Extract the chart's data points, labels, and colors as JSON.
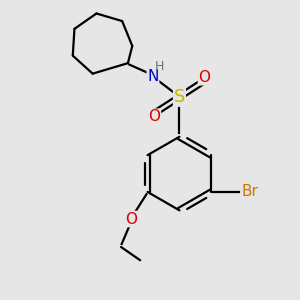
{
  "bg_color": "#e6e6e6",
  "atom_colors": {
    "C": "#000000",
    "N": "#0000cc",
    "O": "#dd0000",
    "S": "#bbbb00",
    "Br": "#cc7700",
    "H": "#557777"
  },
  "bond_color": "#000000",
  "bond_width": 1.6
}
